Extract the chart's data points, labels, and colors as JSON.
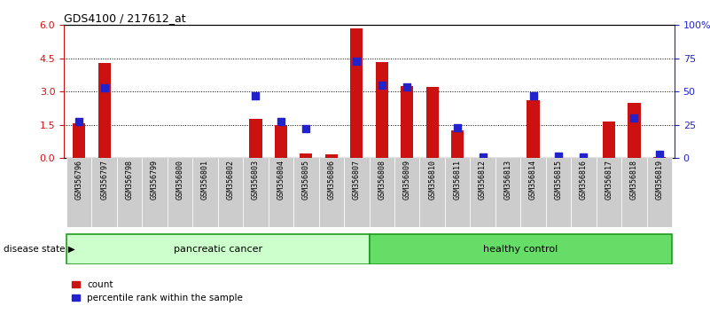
{
  "title": "GDS4100 / 217612_at",
  "samples": [
    "GSM356796",
    "GSM356797",
    "GSM356798",
    "GSM356799",
    "GSM356800",
    "GSM356801",
    "GSM356802",
    "GSM356803",
    "GSM356804",
    "GSM356805",
    "GSM356806",
    "GSM356807",
    "GSM356808",
    "GSM356809",
    "GSM356810",
    "GSM356811",
    "GSM356812",
    "GSM356813",
    "GSM356814",
    "GSM356815",
    "GSM356816",
    "GSM356817",
    "GSM356818",
    "GSM356819"
  ],
  "count_values": [
    1.55,
    4.3,
    0.0,
    0.0,
    0.0,
    0.0,
    0.0,
    1.75,
    1.5,
    0.2,
    0.15,
    5.85,
    4.35,
    3.25,
    3.2,
    1.25,
    0.0,
    0.0,
    2.6,
    0.0,
    0.0,
    1.65,
    2.5,
    0.05
  ],
  "percentile_values": [
    27.5,
    53.0,
    0.0,
    0.0,
    0.0,
    0.0,
    0.0,
    46.5,
    27.5,
    22.0,
    0.0,
    73.0,
    54.5,
    53.5,
    0.0,
    23.0,
    1.0,
    0.0,
    47.0,
    1.5,
    0.5,
    0.0,
    30.0,
    2.5
  ],
  "group_labels": [
    "pancreatic cancer",
    "healthy control"
  ],
  "group_ranges": [
    [
      0,
      11
    ],
    [
      12,
      23
    ]
  ],
  "group_facecolors": [
    "#ccffcc",
    "#66dd66"
  ],
  "group_edgecolor": "#229922",
  "bar_color": "#cc1111",
  "dot_color": "#2222cc",
  "left_ylim": [
    0,
    6
  ],
  "right_ylim": [
    0,
    100
  ],
  "left_yticks": [
    0,
    1.5,
    3.0,
    4.5,
    6
  ],
  "right_yticks": [
    0,
    25,
    50,
    75,
    100
  ],
  "right_yticklabels": [
    "0",
    "25",
    "50",
    "75",
    "100%"
  ],
  "grid_values": [
    1.5,
    3.0,
    4.5
  ],
  "legend_count": "count",
  "legend_pct": "percentile rank within the sample",
  "disease_state_label": "disease state",
  "xtick_bg_color": "#cccccc",
  "bar_width": 0.5
}
